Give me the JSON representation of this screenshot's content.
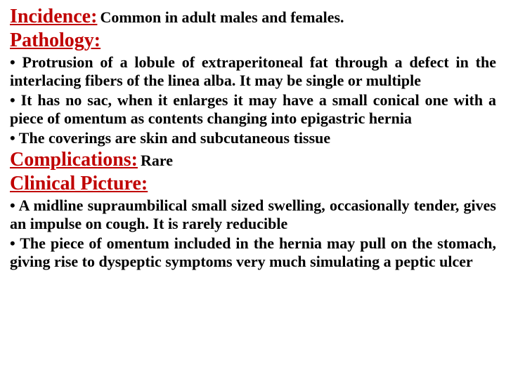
{
  "colors": {
    "heading": "#c00000",
    "body": "#000000",
    "background": "#ffffff"
  },
  "incidence": {
    "label": "Incidence:",
    "text": " Common in adult males and females."
  },
  "pathology": {
    "label": "Pathology:",
    "bullets": [
      "• Protrusion of a lobule of extraperitoneal fat through a defect in the interlacing fibers of the linea alba. It may be single or multiple",
      "• It has no sac, when it enlarges it may have a small conical one with a piece of omentum as contents changing into epigastric hernia",
      "• The coverings are skin and subcutaneous tissue"
    ]
  },
  "complications": {
    "label": "Complications:",
    "text": " Rare"
  },
  "clinical": {
    "label": "Clinical Picture:",
    "bullets": [
      "• A midline supraumbilical small sized swelling, occasionally tender, gives an impulse on cough. It is rarely reducible",
      "• The piece of omentum included in the hernia may pull on the stomach, giving rise to dyspeptic symptoms very much simulating a peptic ulcer"
    ]
  }
}
